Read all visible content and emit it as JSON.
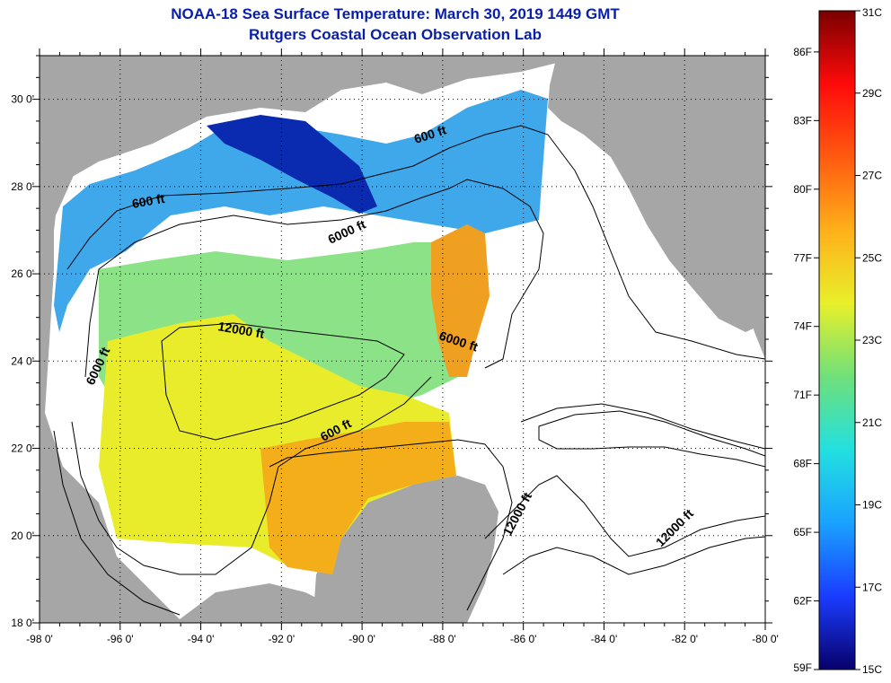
{
  "title": "NOAA-18 Sea Surface Temperature:  March 30, 2019 1449 GMT",
  "subtitle": "Rutgers Coastal Ocean Observation Lab",
  "map": {
    "lon_range": [
      -98,
      -80
    ],
    "lat_range": [
      18,
      31
    ],
    "lon_ticks": [
      "-98 0'",
      "-96 0'",
      "-94 0'",
      "-92 0'",
      "-90 0'",
      "-88 0'",
      "-86 0'",
      "-84 0'",
      "-82 0'",
      "-80 0'"
    ],
    "lat_ticks": [
      "30 0'",
      "28 0'",
      "26 0'",
      "24 0'",
      "22 0'",
      "20 0'",
      "18 0'"
    ],
    "grid": "dotted",
    "land_color": "#a6a6a6",
    "cloud_color": "#ffffff",
    "contour_labels": [
      "600 ft",
      "600 ft",
      "6000 ft",
      "12000 ft",
      "6000 ft",
      "6000 ft",
      "600 ft",
      "12000 ft",
      "12000 ft"
    ]
  },
  "colorbar": {
    "fahrenheit": [
      "86F",
      "83F",
      "80F",
      "77F",
      "74F",
      "71F",
      "68F",
      "65F",
      "62F",
      "59F"
    ],
    "celsius": [
      "31C",
      "29C",
      "27C",
      "25C",
      "23C",
      "21C",
      "19C",
      "17C",
      "15C"
    ],
    "colors": [
      "#08006a",
      "#1a3cff",
      "#1aa2ff",
      "#22e0e0",
      "#6fe07a",
      "#e8f02a",
      "#ffb01a",
      "#ff5a10",
      "#ff0a0a",
      "#7a0000"
    ]
  }
}
